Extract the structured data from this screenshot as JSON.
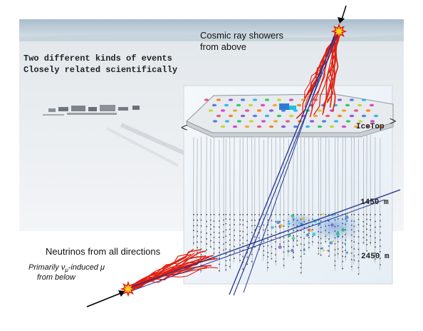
{
  "headline": {
    "line1": "Two different kinds of events",
    "line2": "Closely related scientifically"
  },
  "cosmic_label": {
    "line1": "Cosmic ray showers",
    "line2": "from above"
  },
  "neutrino_label": "Neutrinos from all directions",
  "muon_label": {
    "prefix": "Primarily ",
    "nu": "ν",
    "mu_sub": "μ",
    "middle": "-induced ",
    "mu": "μ",
    "line2": "from below"
  },
  "detector": {
    "surface_label": "IceTop",
    "depth_top": "1450 m",
    "depth_bottom": "2450 m"
  },
  "colors": {
    "sky": "#b9cad6",
    "ice": "#eef2f5",
    "track": "#1f2f8f",
    "shower": "#e02010",
    "flash": "#ffd21a",
    "string": "#9aa3ad"
  }
}
